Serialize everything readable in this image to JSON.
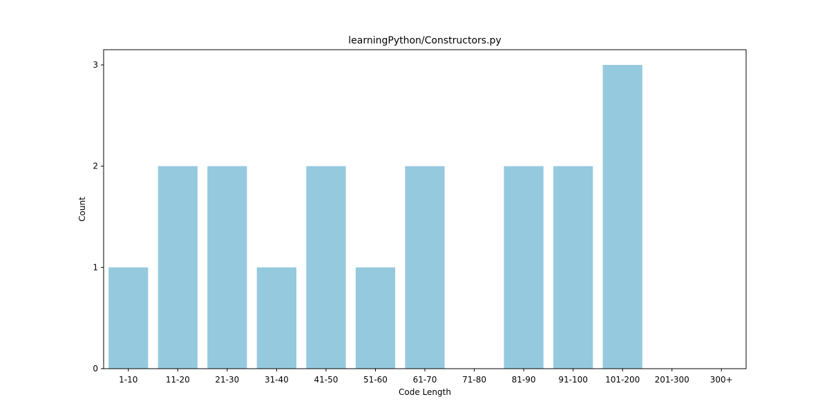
{
  "chart_data": {
    "type": "bar",
    "title": "learningPython/Constructors.py",
    "xlabel": "Code Length",
    "ylabel": "Count",
    "categories": [
      "1-10",
      "11-20",
      "21-30",
      "31-40",
      "41-50",
      "51-60",
      "61-70",
      "71-80",
      "81-90",
      "91-100",
      "101-200",
      "201-300",
      "300+"
    ],
    "values": [
      1,
      2,
      2,
      1,
      2,
      1,
      2,
      0,
      2,
      2,
      3,
      0,
      0
    ],
    "ylim": [
      0,
      3.15
    ],
    "yticks": [
      "0",
      "1",
      "2",
      "3"
    ],
    "bar_color": "#95c9de",
    "grid": false,
    "legend": "none"
  }
}
